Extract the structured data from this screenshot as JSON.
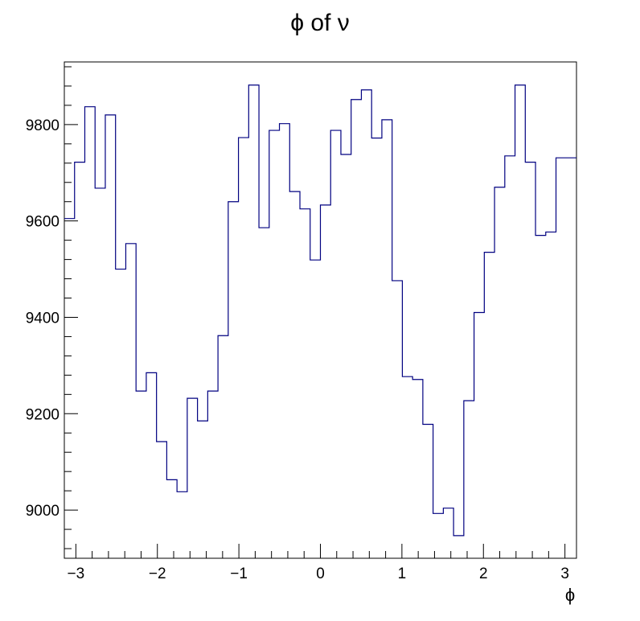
{
  "chart_data": {
    "type": "histogram",
    "title": "ϕ of ν",
    "xlabel": "ϕ",
    "ylabel": "",
    "xlim": [
      -3.1416,
      3.1416
    ],
    "ylim": [
      8900,
      9930
    ],
    "bins": 50,
    "x_ticks": [
      -3,
      -2,
      -1,
      0,
      1,
      2,
      3
    ],
    "x_tick_labels": [
      "−3",
      "−2",
      "−1",
      "0",
      "1",
      "2",
      "3"
    ],
    "y_ticks": [
      9000,
      9200,
      9400,
      9600,
      9800
    ],
    "y_tick_labels": [
      "9000",
      "9200",
      "9400",
      "9600",
      "9800"
    ],
    "values": [
      9605,
      9722,
      9837,
      9668,
      9820,
      9500,
      9553,
      9247,
      9285,
      9142,
      9063,
      9038,
      9232,
      9185,
      9247,
      9362,
      9640,
      9773,
      9882,
      9586,
      9788,
      9802,
      9661,
      9625,
      9519,
      9633,
      9788,
      9738,
      9852,
      9872,
      9772,
      9810,
      9476,
      9277,
      9271,
      9178,
      8993,
      9004,
      8947,
      9227,
      9410,
      9535,
      9670,
      9735,
      9882,
      9722,
      9570,
      9577,
      9731,
      9731
    ],
    "line_color": "#000080",
    "grid": false
  }
}
